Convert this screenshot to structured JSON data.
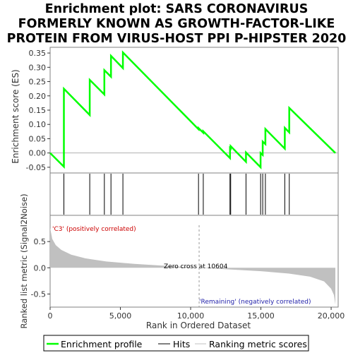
{
  "title_lines": [
    "Enrichment plot: SARS CORONAVIRUS",
    "FORMERLY KNOWN AS GROWTH-FACTOR-LIKE",
    "PROTEIN FROM VIRUS-HOST PPI P-HIPSTER 2020"
  ],
  "top_panel": {
    "ylabel": "Enrichment score (ES)",
    "yticks": [
      "0.35",
      "0.30",
      "0.25",
      "0.20",
      "0.15",
      "0.10",
      "0.05",
      "0.00",
      "-0.05"
    ]
  },
  "bottom_panel": {
    "ylabel": "Ranked list metric (Signal2Noise)",
    "yticks": [
      "0.5",
      "0.0",
      "-0.5"
    ],
    "xlabel": "Rank in Ordered Dataset",
    "xticks": [
      "0",
      "5,000",
      "10,000",
      "15,000",
      "20,000"
    ],
    "zero_cross_label": "Zero cross at 10604",
    "positive_label": "'C3' (positively correlated)",
    "negative_label": "'Remaining' (negatively correlated)"
  },
  "legend": {
    "items": [
      "Enrichment profile",
      "Hits",
      "Ranking metric scores"
    ]
  },
  "colors": {
    "es_line": "#00ff00",
    "hit_line": "#000000",
    "metric_fill": "#c0c0c0",
    "positive_text": "#cc0000",
    "negative_text": "#2222aa"
  },
  "chart_data": {
    "type": "line",
    "x_range": [
      0,
      20500
    ],
    "es_ylim": [
      -0.07,
      0.37
    ],
    "metric_ylim": [
      -0.75,
      1.0
    ],
    "total_ranks": 20300,
    "zero_cross": 10604,
    "hits": [
      980,
      2820,
      3860,
      4330,
      5180,
      10560,
      10900,
      12800,
      12850,
      13940,
      14980,
      15130,
      15320,
      16700,
      17020
    ],
    "enrichment_profile": [
      {
        "x": 0,
        "y": 0.0
      },
      {
        "x": 980,
        "y": -0.048
      },
      {
        "x": 980,
        "y": 0.225
      },
      {
        "x": 2820,
        "y": 0.133
      },
      {
        "x": 2820,
        "y": 0.256
      },
      {
        "x": 3860,
        "y": 0.205
      },
      {
        "x": 3860,
        "y": 0.29
      },
      {
        "x": 4330,
        "y": 0.267
      },
      {
        "x": 4330,
        "y": 0.34
      },
      {
        "x": 5180,
        "y": 0.297
      },
      {
        "x": 5180,
        "y": 0.352
      },
      {
        "x": 10560,
        "y": 0.083
      },
      {
        "x": 10560,
        "y": 0.087
      },
      {
        "x": 10900,
        "y": 0.071
      },
      {
        "x": 10900,
        "y": 0.076
      },
      {
        "x": 12800,
        "y": -0.018
      },
      {
        "x": 12800,
        "y": 0.018
      },
      {
        "x": 12850,
        "y": 0.016
      },
      {
        "x": 12850,
        "y": 0.024
      },
      {
        "x": 13940,
        "y": -0.031
      },
      {
        "x": 13940,
        "y": 0.002
      },
      {
        "x": 14980,
        "y": -0.05
      },
      {
        "x": 14980,
        "y": 0.0
      },
      {
        "x": 15130,
        "y": -0.007
      },
      {
        "x": 15130,
        "y": 0.04
      },
      {
        "x": 15320,
        "y": 0.031
      },
      {
        "x": 15320,
        "y": 0.084
      },
      {
        "x": 16700,
        "y": 0.015
      },
      {
        "x": 16700,
        "y": 0.088
      },
      {
        "x": 17020,
        "y": 0.072
      },
      {
        "x": 17020,
        "y": 0.158
      },
      {
        "x": 20300,
        "y": 0.0
      }
    ],
    "ranking_metric": [
      {
        "x": 0,
        "y": 0.76
      },
      {
        "x": 150,
        "y": 0.55
      },
      {
        "x": 400,
        "y": 0.43
      },
      {
        "x": 800,
        "y": 0.34
      },
      {
        "x": 1500,
        "y": 0.25
      },
      {
        "x": 2500,
        "y": 0.18
      },
      {
        "x": 4000,
        "y": 0.12
      },
      {
        "x": 6000,
        "y": 0.075
      },
      {
        "x": 8000,
        "y": 0.04
      },
      {
        "x": 10604,
        "y": 0.0
      },
      {
        "x": 13000,
        "y": -0.035
      },
      {
        "x": 15000,
        "y": -0.065
      },
      {
        "x": 17000,
        "y": -0.11
      },
      {
        "x": 18500,
        "y": -0.17
      },
      {
        "x": 19500,
        "y": -0.26
      },
      {
        "x": 20000,
        "y": -0.4
      },
      {
        "x": 20200,
        "y": -0.52
      },
      {
        "x": 20300,
        "y": -0.7
      }
    ],
    "color_bar": [
      {
        "from": 0,
        "to": 300,
        "color": "#cc0000"
      },
      {
        "from": 300,
        "to": 900,
        "color": "#ee2a2a"
      },
      {
        "from": 900,
        "to": 2700,
        "color": "#f55050"
      },
      {
        "from": 2700,
        "to": 4700,
        "color": "#f77070"
      },
      {
        "from": 4700,
        "to": 6800,
        "color": "#f99090"
      },
      {
        "from": 6800,
        "to": 10600,
        "color": "#fbc2e2"
      },
      {
        "from": 10600,
        "to": 13000,
        "color": "#dcd8f6"
      },
      {
        "from": 13000,
        "to": 15200,
        "color": "#c0c0f2"
      },
      {
        "from": 15200,
        "to": 16700,
        "color": "#8c8cf0"
      },
      {
        "from": 16700,
        "to": 19200,
        "color": "#5a5ae8"
      },
      {
        "from": 19200,
        "to": 20300,
        "color": "#1a0ad0"
      }
    ]
  }
}
